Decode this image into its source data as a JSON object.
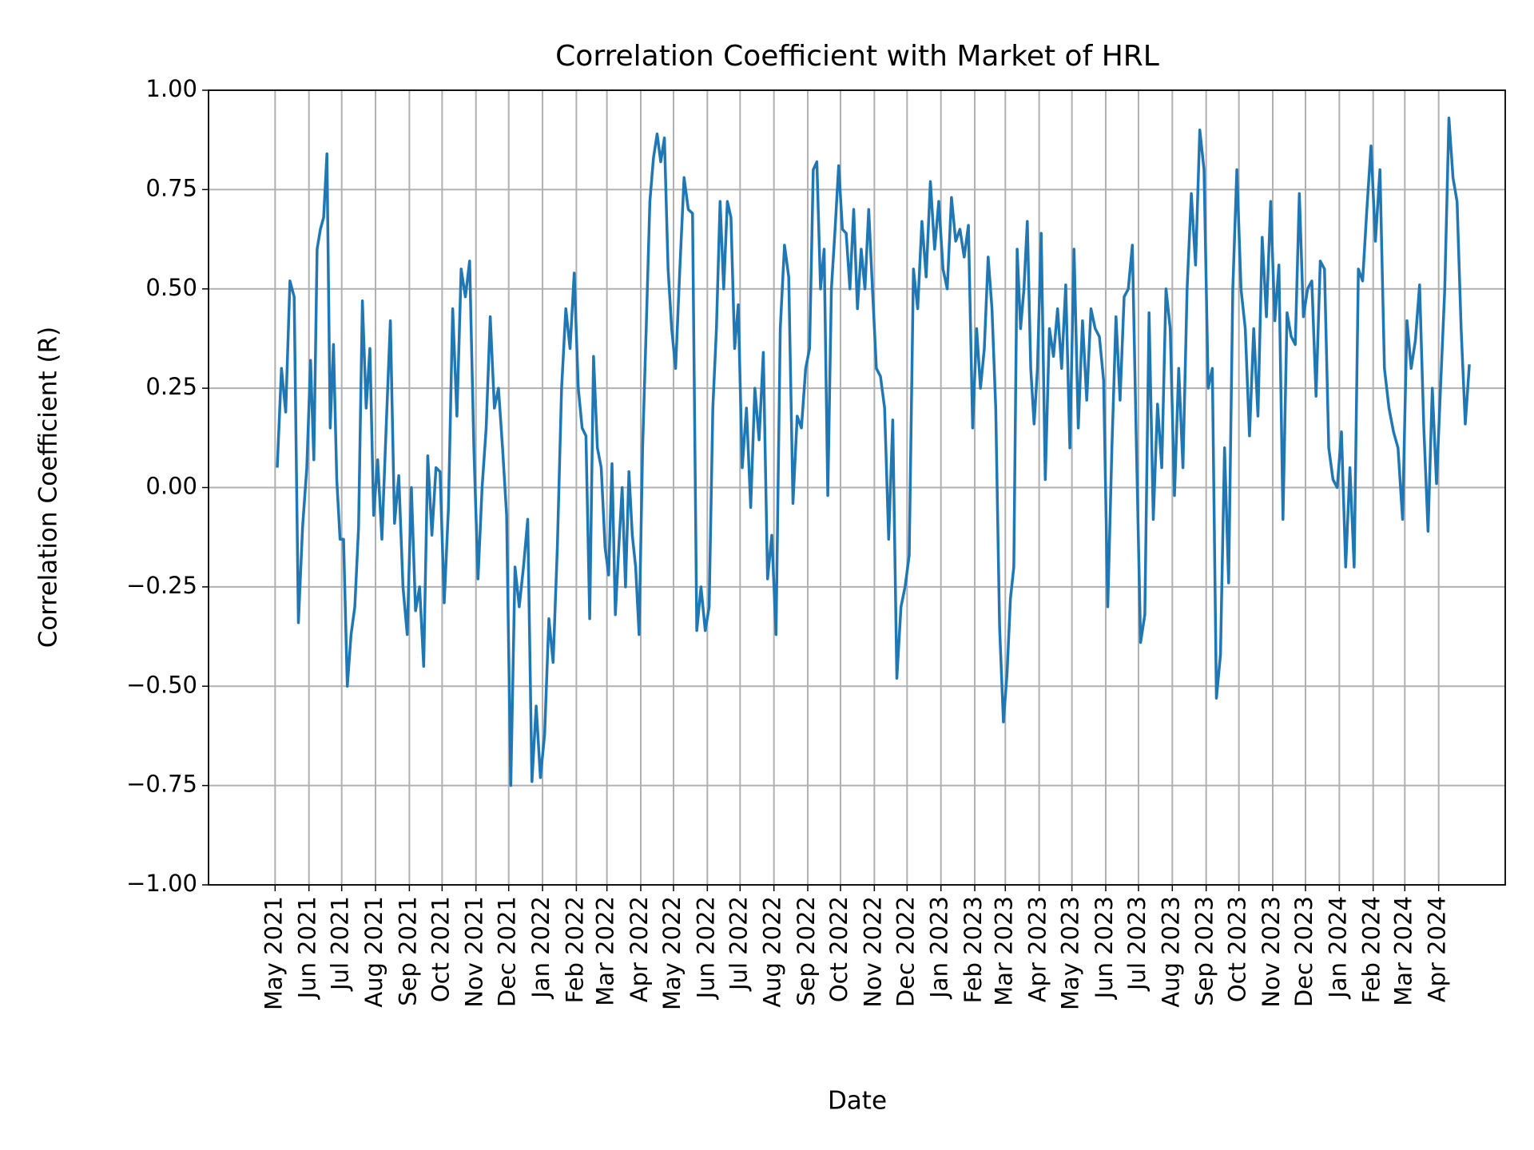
{
  "chart_data": {
    "type": "line",
    "title": "Correlation Coefficient with Market of HRL",
    "x_label": "Date",
    "y_label": "Correlation Coefficient (R)",
    "color": "#1f77b4",
    "grid": true,
    "ylim": [
      -1,
      1
    ],
    "yticks": [
      {
        "value": -1,
        "label": "−1.00"
      },
      {
        "value": -0.75,
        "label": "−0.75"
      },
      {
        "value": -0.5,
        "label": "−0.50"
      },
      {
        "value": -0.25,
        "label": "−0.25"
      },
      {
        "value": 0,
        "label": "0.00"
      },
      {
        "value": 0.25,
        "label": "0.25"
      },
      {
        "value": 0.5,
        "label": "0.50"
      },
      {
        "value": 0.75,
        "label": "0.75"
      },
      {
        "value": 1,
        "label": "1.00"
      }
    ],
    "xlim": [
      "2021-03",
      "2024-06"
    ],
    "xticks": [
      {
        "value": "2021-05",
        "label": "May 2021"
      },
      {
        "value": "2021-06",
        "label": "Jun 2021"
      },
      {
        "value": "2021-07",
        "label": "Jul 2021"
      },
      {
        "value": "2021-08",
        "label": "Aug 2021"
      },
      {
        "value": "2021-09",
        "label": "Sep 2021"
      },
      {
        "value": "2021-10",
        "label": "Oct 2021"
      },
      {
        "value": "2021-11",
        "label": "Nov 2021"
      },
      {
        "value": "2021-12",
        "label": "Dec 2021"
      },
      {
        "value": "2022-01",
        "label": "Jan 2022"
      },
      {
        "value": "2022-02",
        "label": "Feb 2022"
      },
      {
        "value": "2022-03",
        "label": "Mar 2022"
      },
      {
        "value": "2022-04",
        "label": "Apr 2022"
      },
      {
        "value": "2022-05",
        "label": "May 2022"
      },
      {
        "value": "2022-06",
        "label": "Jun 2022"
      },
      {
        "value": "2022-07",
        "label": "Jul 2022"
      },
      {
        "value": "2022-08",
        "label": "Aug 2022"
      },
      {
        "value": "2022-09",
        "label": "Sep 2022"
      },
      {
        "value": "2022-10",
        "label": "Oct 2022"
      },
      {
        "value": "2022-11",
        "label": "Nov 2022"
      },
      {
        "value": "2022-12",
        "label": "Dec 2022"
      },
      {
        "value": "2023-01",
        "label": "Jan 2023"
      },
      {
        "value": "2023-02",
        "label": "Feb 2023"
      },
      {
        "value": "2023-03",
        "label": "Mar 2023"
      },
      {
        "value": "2023-04",
        "label": "Apr 2023"
      },
      {
        "value": "2023-05",
        "label": "May 2023"
      },
      {
        "value": "2023-06",
        "label": "Jun 2023"
      },
      {
        "value": "2023-07",
        "label": "Jul 2023"
      },
      {
        "value": "2023-08",
        "label": "Aug 2023"
      },
      {
        "value": "2023-09",
        "label": "Sep 2023"
      },
      {
        "value": "2023-10",
        "label": "Oct 2023"
      },
      {
        "value": "2023-11",
        "label": "Nov 2023"
      },
      {
        "value": "2023-12",
        "label": "Dec 2023"
      },
      {
        "value": "2024-01",
        "label": "Jan 2024"
      },
      {
        "value": "2024-02",
        "label": "Feb 2024"
      },
      {
        "value": "2024-03",
        "label": "Mar 2024"
      },
      {
        "value": "2024-04",
        "label": "Apr 2024"
      }
    ],
    "x": [
      "2021-05",
      "2021-05",
      "2021-05",
      "2021-05",
      "2021-05",
      "2021-05",
      "2021-05",
      "2021-05",
      "2021-06",
      "2021-06",
      "2021-06",
      "2021-06",
      "2021-06",
      "2021-06",
      "2021-06",
      "2021-06",
      "2021-06",
      "2021-06",
      "2021-07",
      "2021-07",
      "2021-07",
      "2021-07",
      "2021-07",
      "2021-07",
      "2021-07",
      "2021-07",
      "2021-07",
      "2021-08",
      "2021-08",
      "2021-08",
      "2021-08",
      "2021-08",
      "2021-08",
      "2021-08",
      "2021-08",
      "2021-09",
      "2021-09",
      "2021-09",
      "2021-09",
      "2021-09",
      "2021-09",
      "2021-09",
      "2021-09",
      "2021-10",
      "2021-10",
      "2021-10",
      "2021-10",
      "2021-10",
      "2021-10",
      "2021-10",
      "2021-10",
      "2021-11",
      "2021-11",
      "2021-11",
      "2021-11",
      "2021-11",
      "2021-11",
      "2021-11",
      "2021-11",
      "2021-12",
      "2021-12",
      "2021-12",
      "2021-12",
      "2021-12",
      "2021-12",
      "2021-12",
      "2021-12",
      "2022-01",
      "2022-01",
      "2022-01",
      "2022-01",
      "2022-01",
      "2022-01",
      "2022-01",
      "2022-01",
      "2022-02",
      "2022-02",
      "2022-02",
      "2022-02",
      "2022-02",
      "2022-02",
      "2022-02",
      "2022-02",
      "2022-03",
      "2022-03",
      "2022-03",
      "2022-03",
      "2022-03",
      "2022-03",
      "2022-03",
      "2022-03",
      "2022-03",
      "2022-03",
      "2022-04",
      "2022-04",
      "2022-04",
      "2022-04",
      "2022-04",
      "2022-04",
      "2022-04",
      "2022-04",
      "2022-04",
      "2022-05",
      "2022-05",
      "2022-05",
      "2022-05",
      "2022-05",
      "2022-05",
      "2022-05",
      "2022-05",
      "2022-06",
      "2022-06",
      "2022-06",
      "2022-06",
      "2022-06",
      "2022-06",
      "2022-06",
      "2022-06",
      "2022-06",
      "2022-07",
      "2022-07",
      "2022-07",
      "2022-07",
      "2022-07",
      "2022-07",
      "2022-07",
      "2022-07",
      "2022-08",
      "2022-08",
      "2022-08",
      "2022-08",
      "2022-08",
      "2022-08",
      "2022-08",
      "2022-08",
      "2022-09",
      "2022-09",
      "2022-09",
      "2022-09",
      "2022-09",
      "2022-09",
      "2022-09",
      "2022-09",
      "2022-09",
      "2022-10",
      "2022-10",
      "2022-10",
      "2022-10",
      "2022-10",
      "2022-10",
      "2022-10",
      "2022-10",
      "2022-10",
      "2022-11",
      "2022-11",
      "2022-11",
      "2022-11",
      "2022-11",
      "2022-11",
      "2022-11",
      "2022-11",
      "2022-12",
      "2022-12",
      "2022-12",
      "2022-12",
      "2022-12",
      "2022-12",
      "2022-12",
      "2022-12",
      "2023-01",
      "2023-01",
      "2023-01",
      "2023-01",
      "2023-01",
      "2023-01",
      "2023-01",
      "2023-01",
      "2023-02",
      "2023-02",
      "2023-02",
      "2023-02",
      "2023-02",
      "2023-02",
      "2023-02",
      "2023-02",
      "2023-03",
      "2023-03",
      "2023-03",
      "2023-03",
      "2023-03",
      "2023-03",
      "2023-03",
      "2023-03",
      "2023-03",
      "2023-03",
      "2023-04",
      "2023-04",
      "2023-04",
      "2023-04",
      "2023-04",
      "2023-04",
      "2023-04",
      "2023-04",
      "2023-05",
      "2023-05",
      "2023-05",
      "2023-05",
      "2023-05",
      "2023-05",
      "2023-05",
      "2023-05",
      "2023-06",
      "2023-06",
      "2023-06",
      "2023-06",
      "2023-06",
      "2023-06",
      "2023-06",
      "2023-06",
      "2023-07",
      "2023-07",
      "2023-07",
      "2023-07",
      "2023-07",
      "2023-07",
      "2023-07",
      "2023-07",
      "2023-08",
      "2023-08",
      "2023-08",
      "2023-08",
      "2023-08",
      "2023-08",
      "2023-08",
      "2023-08",
      "2023-09",
      "2023-09",
      "2023-09",
      "2023-09",
      "2023-09",
      "2023-09",
      "2023-09",
      "2023-09",
      "2023-10",
      "2023-10",
      "2023-10",
      "2023-10",
      "2023-10",
      "2023-10",
      "2023-10",
      "2023-10",
      "2023-11",
      "2023-11",
      "2023-11",
      "2023-11",
      "2023-11",
      "2023-11",
      "2023-11",
      "2023-11",
      "2023-12",
      "2023-12",
      "2023-12",
      "2023-12",
      "2023-12",
      "2023-12",
      "2023-12",
      "2023-12",
      "2024-01",
      "2024-01",
      "2024-01",
      "2024-01",
      "2024-01",
      "2024-01",
      "2024-01",
      "2024-01",
      "2024-02",
      "2024-02",
      "2024-02",
      "2024-02",
      "2024-02",
      "2024-02",
      "2024-02",
      "2024-03",
      "2024-03",
      "2024-03",
      "2024-03",
      "2024-03",
      "2024-03",
      "2024-03",
      "2024-03",
      "2024-04",
      "2024-04",
      "2024-04",
      "2024-04",
      "2024-04",
      "2024-04",
      "2024-04",
      "2024-04"
    ],
    "values": [
      0.05,
      0.3,
      0.19,
      0.52,
      0.48,
      -0.34,
      -0.1,
      0.05,
      0.32,
      0.07,
      0.6,
      0.65,
      0.68,
      0.84,
      0.15,
      0.36,
      0.02,
      -0.13,
      -0.13,
      -0.5,
      -0.37,
      -0.3,
      -0.1,
      0.47,
      0.2,
      0.35,
      -0.07,
      0.07,
      -0.13,
      0.15,
      0.42,
      -0.09,
      0.03,
      -0.25,
      -0.37,
      0.0,
      -0.31,
      -0.25,
      -0.45,
      0.08,
      -0.12,
      0.05,
      0.04,
      -0.29,
      -0.05,
      0.45,
      0.18,
      0.55,
      0.48,
      0.57,
      0.1,
      -0.23,
      0.0,
      0.15,
      0.43,
      0.2,
      0.25,
      0.1,
      -0.07,
      -0.75,
      -0.2,
      -0.3,
      -0.2,
      -0.08,
      -0.74,
      -0.55,
      -0.73,
      -0.62,
      -0.33,
      -0.44,
      -0.15,
      0.25,
      0.45,
      0.35,
      0.54,
      0.25,
      0.15,
      0.13,
      -0.33,
      0.33,
      0.1,
      0.05,
      -0.15,
      -0.22,
      0.06,
      -0.32,
      -0.15,
      0.0,
      -0.25,
      0.04,
      -0.12,
      -0.2,
      -0.37,
      0.1,
      0.4,
      0.72,
      0.83,
      0.89,
      0.82,
      0.88,
      0.55,
      0.4,
      0.3,
      0.55,
      0.78,
      0.7,
      0.69,
      -0.36,
      -0.25,
      -0.36,
      -0.3,
      0.2,
      0.4,
      0.72,
      0.5,
      0.72,
      0.68,
      0.35,
      0.46,
      0.05,
      0.2,
      -0.05,
      0.25,
      0.12,
      0.34,
      -0.23,
      -0.12,
      -0.37,
      0.4,
      0.61,
      0.53,
      -0.04,
      0.18,
      0.15,
      0.3,
      0.35,
      0.8,
      0.82,
      0.5,
      0.6,
      -0.02,
      0.5,
      0.65,
      0.81,
      0.65,
      0.64,
      0.5,
      0.7,
      0.45,
      0.6,
      0.5,
      0.7,
      0.5,
      0.3,
      0.28,
      0.2,
      -0.13,
      0.17,
      -0.48,
      -0.3,
      -0.25,
      -0.17,
      0.55,
      0.45,
      0.67,
      0.53,
      0.77,
      0.6,
      0.72,
      0.55,
      0.5,
      0.73,
      0.62,
      0.65,
      0.58,
      0.66,
      0.15,
      0.4,
      0.25,
      0.35,
      0.58,
      0.45,
      0.2,
      -0.35,
      -0.59,
      -0.47,
      -0.28,
      -0.2,
      0.6,
      0.4,
      0.5,
      0.67,
      0.3,
      0.16,
      0.3,
      0.64,
      0.02,
      0.4,
      0.33,
      0.45,
      0.3,
      0.51,
      0.1,
      0.6,
      0.15,
      0.42,
      0.22,
      0.45,
      0.4,
      0.38,
      0.27,
      -0.3,
      0.1,
      0.43,
      0.22,
      0.48,
      0.5,
      0.61,
      0.1,
      -0.39,
      -0.32,
      0.44,
      -0.08,
      0.21,
      0.05,
      0.5,
      0.4,
      -0.02,
      0.3,
      0.05,
      0.5,
      0.74,
      0.56,
      0.9,
      0.8,
      0.25,
      0.3,
      -0.53,
      -0.42,
      0.1,
      -0.24,
      0.5,
      0.8,
      0.5,
      0.4,
      0.13,
      0.4,
      0.18,
      0.63,
      0.43,
      0.72,
      0.42,
      0.56,
      -0.08,
      0.44,
      0.38,
      0.36,
      0.74,
      0.43,
      0.5,
      0.52,
      0.23,
      0.57,
      0.55,
      0.1,
      0.02,
      0.0,
      0.14,
      -0.2,
      0.05,
      -0.2,
      0.55,
      0.52,
      0.7,
      0.86,
      0.62,
      0.8,
      0.3,
      0.2,
      0.14,
      0.1,
      -0.08,
      0.42,
      0.3,
      0.37,
      0.51,
      0.15,
      -0.11,
      0.25,
      0.01,
      0.26,
      0.5,
      0.93,
      0.78,
      0.72,
      0.4,
      0.16,
      0.31
    ]
  }
}
